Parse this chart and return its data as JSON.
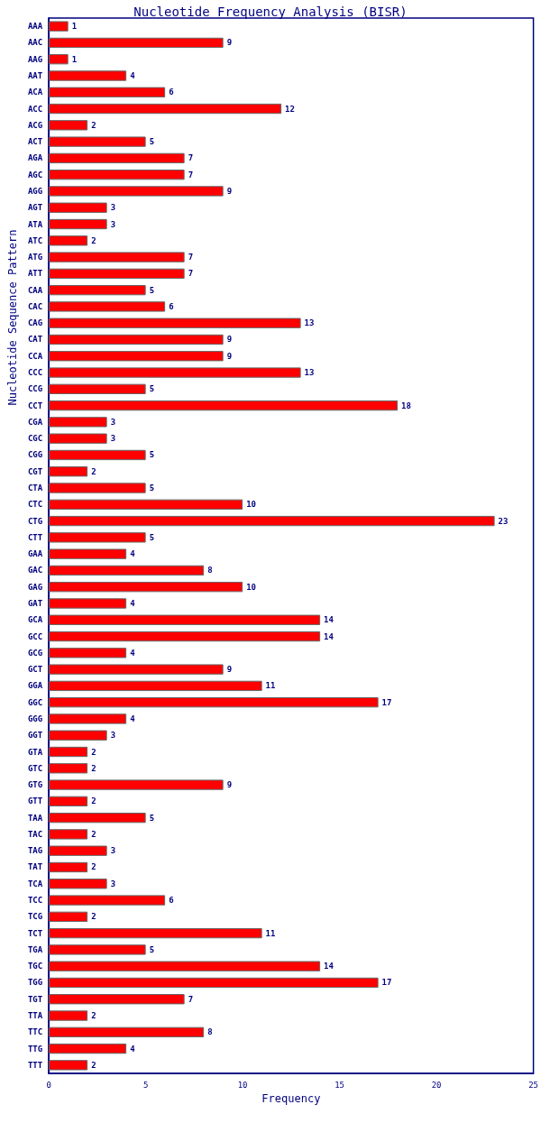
{
  "chart_data": {
    "type": "bar",
    "orientation": "horizontal",
    "title": "Nucleotide Frequency Analysis (BISR)",
    "xlabel": "Frequency",
    "ylabel": "Nucleotide Sequence Pattern",
    "categories": [
      "AAA",
      "AAC",
      "AAG",
      "AAT",
      "ACA",
      "ACC",
      "ACG",
      "ACT",
      "AGA",
      "AGC",
      "AGG",
      "AGT",
      "ATA",
      "ATC",
      "ATG",
      "ATT",
      "CAA",
      "CAC",
      "CAG",
      "CAT",
      "CCA",
      "CCC",
      "CCG",
      "CCT",
      "CGA",
      "CGC",
      "CGG",
      "CGT",
      "CTA",
      "CTC",
      "CTG",
      "CTT",
      "GAA",
      "GAC",
      "GAG",
      "GAT",
      "GCA",
      "GCC",
      "GCG",
      "GCT",
      "GGA",
      "GGC",
      "GGG",
      "GGT",
      "GTA",
      "GTC",
      "GTG",
      "GTT",
      "TAA",
      "TAC",
      "TAG",
      "TAT",
      "TCA",
      "TCC",
      "TCG",
      "TCT",
      "TGA",
      "TGC",
      "TGG",
      "TGT",
      "TTA",
      "TTC",
      "TTG",
      "TTT"
    ],
    "values": [
      1,
      9,
      1,
      4,
      6,
      12,
      2,
      5,
      7,
      7,
      9,
      3,
      3,
      2,
      7,
      7,
      5,
      6,
      13,
      9,
      9,
      13,
      5,
      18,
      3,
      3,
      5,
      2,
      5,
      10,
      23,
      5,
      4,
      8,
      10,
      4,
      14,
      14,
      4,
      9,
      11,
      17,
      4,
      3,
      2,
      2,
      9,
      2,
      5,
      2,
      3,
      2,
      3,
      6,
      2,
      11,
      5,
      14,
      17,
      7,
      2,
      8,
      4,
      2
    ],
    "color": "#ff0000",
    "xlim": [
      0,
      25
    ],
    "xticks": [
      0,
      5,
      10,
      15,
      20,
      25
    ],
    "data_labels": true
  }
}
